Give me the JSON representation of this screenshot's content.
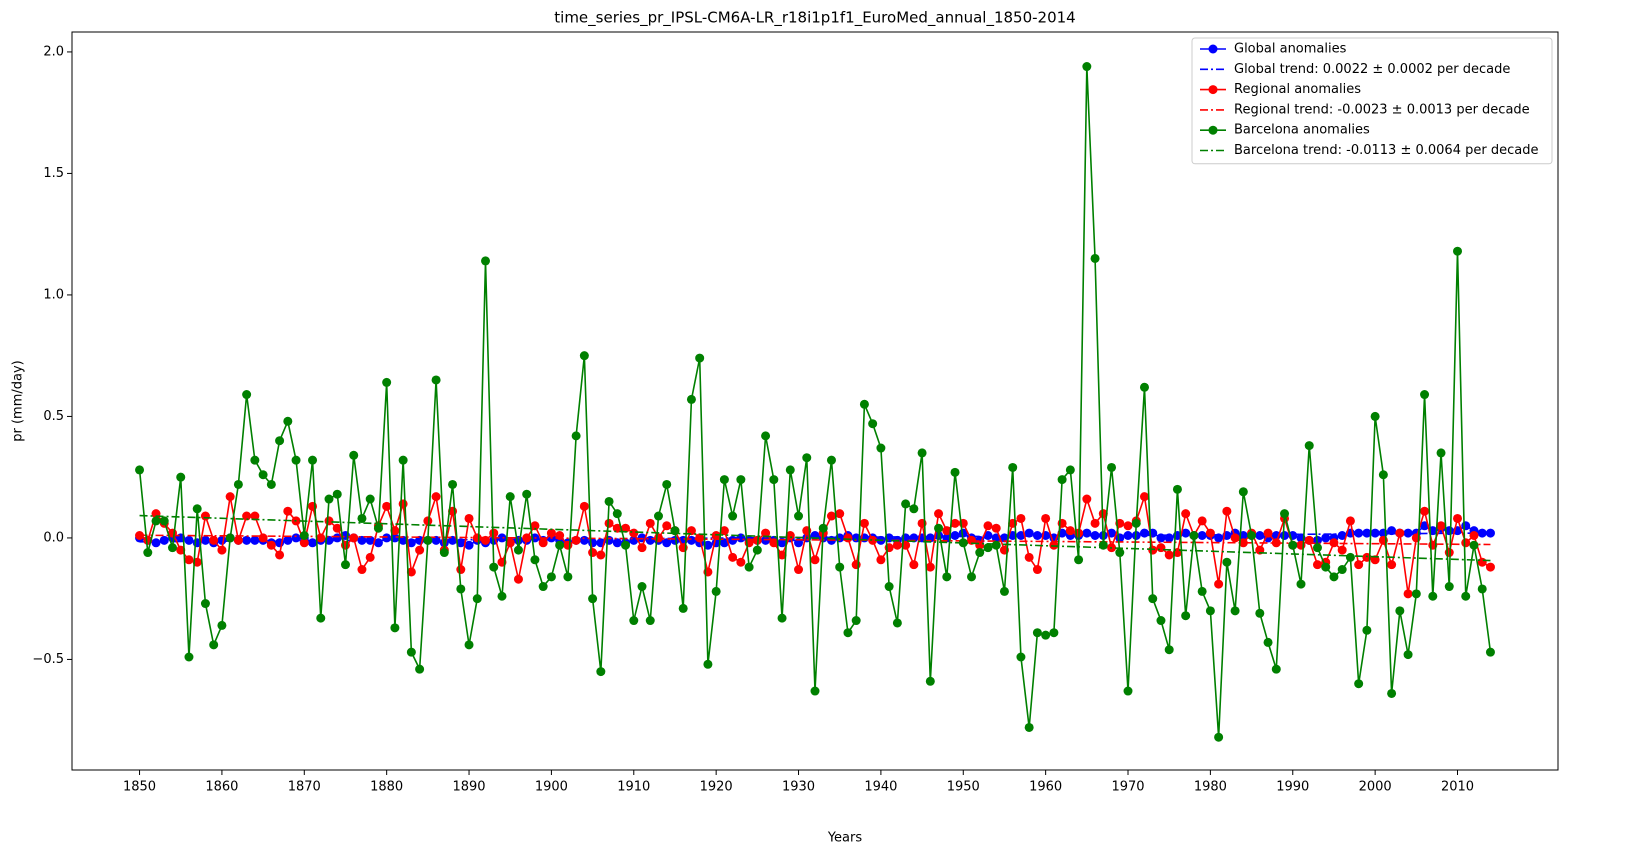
{
  "chart_data": {
    "type": "line",
    "title": "time_series_pr_IPSL-CM6A-LR_r18i1p1f1_EuroMed_annual_1850-2014",
    "xlabel": "Years",
    "ylabel": "pr (mm/day)",
    "xlim": [
      1841.8,
      2022.2
    ],
    "ylim": [
      -0.955,
      2.082
    ],
    "xticks": [
      1850,
      1860,
      1870,
      1880,
      1890,
      1900,
      1910,
      1920,
      1930,
      1940,
      1950,
      1960,
      1970,
      1980,
      1990,
      2000,
      2010
    ],
    "yticks": [
      {
        "value": -0.5,
        "label": "−0.5"
      },
      {
        "value": 0,
        "label": "0.0"
      },
      0.5,
      {
        "value": 1,
        "label": "1.0"
      },
      1.5,
      {
        "value": 2,
        "label": "2.0"
      }
    ],
    "grid": false,
    "legend": "upper right",
    "x": [
      1850,
      1851,
      1852,
      1853,
      1854,
      1855,
      1856,
      1857,
      1858,
      1859,
      1860,
      1861,
      1862,
      1863,
      1864,
      1865,
      1866,
      1867,
      1868,
      1869,
      1870,
      1871,
      1872,
      1873,
      1874,
      1875,
      1876,
      1877,
      1878,
      1879,
      1880,
      1881,
      1882,
      1883,
      1884,
      1885,
      1886,
      1887,
      1888,
      1889,
      1890,
      1891,
      1892,
      1893,
      1894,
      1895,
      1896,
      1897,
      1898,
      1899,
      1900,
      1901,
      1902,
      1903,
      1904,
      1905,
      1906,
      1907,
      1908,
      1909,
      1910,
      1911,
      1912,
      1913,
      1914,
      1915,
      1916,
      1917,
      1918,
      1919,
      1920,
      1921,
      1922,
      1923,
      1924,
      1925,
      1926,
      1927,
      1928,
      1929,
      1930,
      1931,
      1932,
      1933,
      1934,
      1935,
      1936,
      1937,
      1938,
      1939,
      1940,
      1941,
      1942,
      1943,
      1944,
      1945,
      1946,
      1947,
      1948,
      1949,
      1950,
      1951,
      1952,
      1953,
      1954,
      1955,
      1956,
      1957,
      1958,
      1959,
      1960,
      1961,
      1962,
      1963,
      1964,
      1965,
      1966,
      1967,
      1968,
      1969,
      1970,
      1971,
      1972,
      1973,
      1974,
      1975,
      1976,
      1977,
      1978,
      1979,
      1980,
      1981,
      1982,
      1983,
      1984,
      1985,
      1986,
      1987,
      1988,
      1989,
      1990,
      1991,
      1992,
      1993,
      1994,
      1995,
      1996,
      1997,
      1998,
      1999,
      2000,
      2001,
      2002,
      2003,
      2004,
      2005,
      2006,
      2007,
      2008,
      2009,
      2010,
      2011,
      2012,
      2013,
      2014
    ],
    "series": [
      {
        "name": "Global anomalies",
        "color": "#0000ff",
        "linestyle": "solid",
        "marker": "o",
        "values": [
          0.0,
          -0.01,
          -0.02,
          -0.01,
          0.0,
          0.0,
          -0.01,
          -0.02,
          -0.01,
          -0.02,
          -0.01,
          0.0,
          -0.01,
          -0.01,
          -0.01,
          -0.01,
          -0.02,
          -0.02,
          -0.01,
          0.0,
          0.0,
          -0.02,
          -0.01,
          -0.01,
          0.0,
          0.01,
          0.0,
          -0.01,
          -0.01,
          -0.02,
          0.0,
          0.0,
          -0.01,
          -0.02,
          -0.01,
          -0.01,
          -0.01,
          -0.02,
          -0.01,
          -0.02,
          -0.03,
          -0.01,
          -0.02,
          -0.01,
          0.0,
          -0.02,
          -0.01,
          -0.01,
          0.0,
          -0.01,
          0.0,
          -0.01,
          -0.02,
          -0.01,
          -0.01,
          -0.02,
          -0.02,
          -0.01,
          -0.02,
          -0.02,
          -0.01,
          0.0,
          -0.01,
          -0.01,
          -0.02,
          -0.01,
          -0.01,
          -0.01,
          -0.02,
          -0.03,
          -0.02,
          -0.02,
          -0.01,
          0.0,
          -0.01,
          -0.01,
          -0.01,
          -0.01,
          -0.02,
          0.0,
          -0.02,
          0.0,
          0.01,
          0.0,
          -0.01,
          0.0,
          0.01,
          0.0,
          0.0,
          0.0,
          -0.01,
          0.0,
          -0.01,
          0.0,
          0.0,
          0.0,
          0.0,
          0.01,
          0.0,
          0.01,
          0.02,
          0.0,
          -0.01,
          0.01,
          0.0,
          0.0,
          0.01,
          0.01,
          0.02,
          0.01,
          0.01,
          0.0,
          0.02,
          0.01,
          0.01,
          0.02,
          0.01,
          0.01,
          0.02,
          0.0,
          0.01,
          0.01,
          0.02,
          0.02,
          0.0,
          0.0,
          0.01,
          0.02,
          0.01,
          0.01,
          0.01,
          0.0,
          0.01,
          0.02,
          0.01,
          0.01,
          0.01,
          0.0,
          0.01,
          0.01,
          0.01,
          0.0,
          -0.01,
          -0.01,
          0.0,
          0.0,
          0.01,
          0.02,
          0.02,
          0.02,
          0.02,
          0.02,
          0.03,
          0.02,
          0.02,
          0.02,
          0.05,
          0.03,
          0.04,
          0.03,
          0.03,
          0.05,
          0.03,
          0.02,
          0.02
        ]
      },
      {
        "name": "Global trend: 0.0022 ± 0.0002 per decade",
        "color": "#0000ff",
        "linestyle": "dashdot",
        "x": [
          1850,
          2014
        ],
        "values": [
          -0.016,
          0.02
        ]
      },
      {
        "name": "Regional anomalies",
        "color": "#ff0000",
        "linestyle": "solid",
        "marker": "o",
        "values": [
          0.01,
          -0.01,
          0.1,
          0.06,
          0.02,
          -0.05,
          -0.09,
          -0.1,
          0.09,
          -0.01,
          -0.05,
          0.17,
          -0.01,
          0.09,
          0.09,
          0.0,
          -0.03,
          -0.07,
          0.11,
          0.07,
          -0.02,
          0.13,
          0.0,
          0.07,
          0.04,
          -0.03,
          0.0,
          -0.13,
          -0.08,
          0.05,
          0.13,
          0.03,
          0.14,
          -0.14,
          -0.05,
          0.07,
          0.17,
          -0.05,
          0.11,
          -0.13,
          0.08,
          0.0,
          -0.01,
          0.02,
          -0.1,
          -0.02,
          -0.17,
          0.0,
          0.05,
          -0.02,
          0.02,
          0.01,
          -0.03,
          -0.01,
          0.13,
          -0.06,
          -0.07,
          0.06,
          0.04,
          0.04,
          0.02,
          -0.04,
          0.06,
          0.0,
          0.05,
          0.03,
          -0.04,
          0.03,
          0.0,
          -0.14,
          0.01,
          0.03,
          -0.08,
          -0.1,
          -0.02,
          -0.01,
          0.02,
          -0.02,
          -0.07,
          0.01,
          -0.13,
          0.03,
          -0.09,
          0.02,
          0.09,
          0.1,
          0.0,
          -0.11,
          0.06,
          -0.01,
          -0.09,
          -0.04,
          -0.03,
          -0.03,
          -0.11,
          0.06,
          -0.12,
          0.1,
          0.03,
          0.06,
          0.06,
          -0.01,
          -0.03,
          0.05,
          0.04,
          -0.05,
          0.06,
          0.08,
          -0.08,
          -0.13,
          0.08,
          -0.03,
          0.06,
          0.03,
          0.02,
          0.16,
          0.06,
          0.1,
          -0.04,
          0.06,
          0.05,
          0.07,
          0.17,
          -0.05,
          -0.04,
          -0.07,
          -0.06,
          0.1,
          0.01,
          0.07,
          0.02,
          -0.19,
          0.11,
          0.0,
          -0.02,
          0.02,
          -0.05,
          0.02,
          -0.02,
          0.08,
          -0.03,
          -0.03,
          -0.01,
          -0.11,
          -0.1,
          -0.02,
          -0.05,
          0.07,
          -0.11,
          -0.08,
          -0.09,
          -0.01,
          -0.11,
          0.02,
          -0.23,
          0.0,
          0.11,
          -0.03,
          0.05,
          -0.06,
          0.08,
          -0.02,
          0.01,
          -0.1,
          -0.12
        ]
      },
      {
        "name": "Regional trend: -0.0023 ± 0.0013 per decade",
        "color": "#ff0000",
        "linestyle": "dashdot",
        "x": [
          1850,
          2014
        ],
        "values": [
          0.011,
          -0.027
        ]
      },
      {
        "name": "Barcelona anomalies",
        "color": "#008000",
        "linestyle": "solid",
        "marker": "o",
        "values": [
          0.28,
          -0.06,
          0.07,
          0.07,
          -0.04,
          0.25,
          -0.49,
          0.12,
          -0.27,
          -0.44,
          -0.36,
          0.0,
          0.22,
          0.59,
          0.32,
          0.26,
          0.22,
          0.4,
          0.48,
          0.32,
          0.01,
          0.32,
          -0.33,
          0.16,
          0.18,
          -0.11,
          0.34,
          0.08,
          0.16,
          0.04,
          0.64,
          -0.37,
          0.32,
          -0.47,
          -0.54,
          -0.01,
          0.65,
          -0.06,
          0.22,
          -0.21,
          -0.44,
          -0.25,
          1.14,
          -0.12,
          -0.24,
          0.17,
          -0.05,
          0.18,
          -0.09,
          -0.2,
          -0.16,
          -0.03,
          -0.16,
          0.42,
          0.75,
          -0.25,
          -0.55,
          0.15,
          0.1,
          -0.03,
          -0.34,
          -0.2,
          -0.34,
          0.09,
          0.22,
          0.03,
          -0.29,
          0.57,
          0.74,
          -0.52,
          -0.22,
          0.24,
          0.09,
          0.24,
          -0.12,
          -0.05,
          0.42,
          0.24,
          -0.33,
          0.28,
          0.09,
          0.33,
          -0.63,
          0.04,
          0.32,
          -0.12,
          -0.39,
          -0.34,
          0.55,
          0.47,
          0.37,
          -0.2,
          -0.35,
          0.14,
          0.12,
          0.35,
          -0.59,
          0.04,
          -0.16,
          0.27,
          -0.02,
          -0.16,
          -0.06,
          -0.04,
          -0.03,
          -0.22,
          0.29,
          -0.49,
          -0.78,
          -0.39,
          -0.4,
          -0.39,
          0.24,
          0.28,
          -0.09,
          1.94,
          1.15,
          -0.03,
          0.29,
          -0.06,
          -0.63,
          0.06,
          0.62,
          -0.25,
          -0.34,
          -0.46,
          0.2,
          -0.32,
          0.01,
          -0.22,
          -0.3,
          -0.82,
          -0.1,
          -0.3,
          0.19,
          0.01,
          -0.31,
          -0.43,
          -0.54,
          0.1,
          -0.03,
          -0.19,
          0.38,
          -0.04,
          -0.12,
          -0.16,
          -0.13,
          -0.08,
          -0.6,
          -0.38,
          0.5,
          0.26,
          -0.64,
          -0.3,
          -0.48,
          -0.23,
          0.59,
          -0.24,
          0.35,
          -0.2,
          1.18,
          -0.24,
          -0.03,
          -0.21,
          -0.47
        ]
      },
      {
        "name": "Barcelona trend: -0.0113 ± 0.0064 per decade",
        "color": "#008000",
        "linestyle": "dashdot",
        "x": [
          1850,
          2014
        ],
        "values": [
          0.092,
          -0.093
        ]
      }
    ]
  }
}
